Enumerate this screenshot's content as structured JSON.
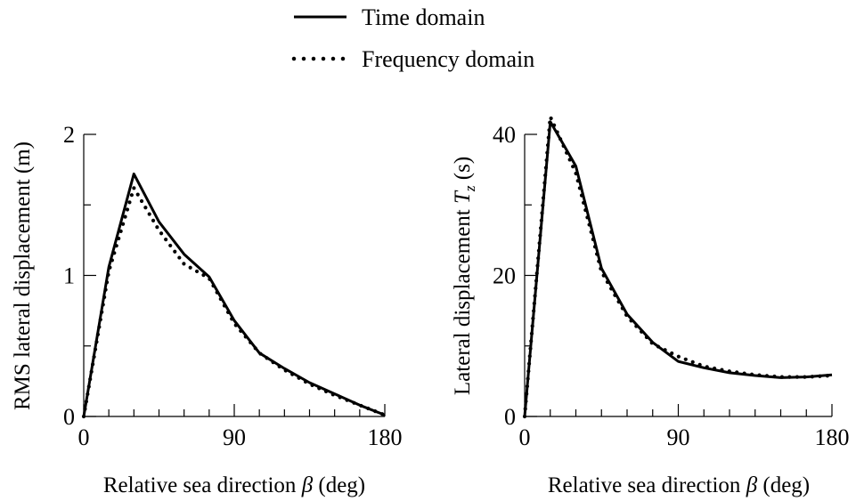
{
  "legend": {
    "entries": [
      {
        "label": "Time domain",
        "style": "solid"
      },
      {
        "label": "Frequency domain",
        "style": "dotted"
      }
    ],
    "placement": "top-center"
  },
  "chart_data": [
    {
      "type": "line",
      "xlabel": "Relative sea direction β (deg)",
      "xlabel_parts": [
        "Relative sea direction ",
        "β",
        " (deg)"
      ],
      "ylabel": "RMS lateral displacement (m)",
      "ylabel_parts": [
        "RMS lateral displacement (m)",
        "",
        ""
      ],
      "xlim": [
        0,
        180
      ],
      "ylim": [
        0,
        2
      ],
      "xticks": [
        0,
        90,
        180
      ],
      "xminor": [
        15,
        30,
        45,
        60,
        75,
        105,
        120,
        135,
        150,
        165
      ],
      "yticks": [
        0,
        1,
        2
      ],
      "yminor": [
        0.5,
        1.5
      ],
      "grid": false,
      "series": [
        {
          "name": "Time domain",
          "style": "solid",
          "x": [
            0,
            15,
            30,
            45,
            60,
            75,
            90,
            105,
            120,
            135,
            150,
            165,
            180
          ],
          "y": [
            0,
            1.06,
            1.72,
            1.38,
            1.15,
            0.99,
            0.68,
            0.45,
            0.34,
            0.24,
            0.16,
            0.08,
            0.01
          ]
        },
        {
          "name": "Frequency domain",
          "style": "dotted",
          "x": [
            0,
            15,
            30,
            45,
            60,
            75,
            90,
            105,
            120,
            135,
            150,
            165,
            180
          ],
          "y": [
            0,
            1.03,
            1.62,
            1.32,
            1.08,
            0.98,
            0.66,
            0.45,
            0.33,
            0.23,
            0.15,
            0.08,
            0.01
          ]
        }
      ]
    },
    {
      "type": "line",
      "xlabel": "Relative sea direction β (deg)",
      "xlabel_parts": [
        "Relative sea direction ",
        "β",
        " (deg)"
      ],
      "ylabel": "Lateral displacement Tz (s)",
      "ylabel_parts": [
        "Lateral displacement ",
        "T",
        "z",
        " (s)"
      ],
      "xlim": [
        0,
        180
      ],
      "ylim": [
        0,
        40
      ],
      "xticks": [
        0,
        90,
        180
      ],
      "xminor": [
        15,
        30,
        45,
        60,
        75,
        105,
        120,
        135,
        150,
        165
      ],
      "yticks": [
        0,
        20,
        40
      ],
      "yminor": [
        10,
        30
      ],
      "grid": false,
      "series": [
        {
          "name": "Time domain",
          "style": "solid",
          "x": [
            0,
            15,
            30,
            45,
            60,
            75,
            90,
            105,
            120,
            135,
            150,
            165,
            180
          ],
          "y": [
            0,
            41.8,
            35.5,
            21,
            14.5,
            10.5,
            7.8,
            6.9,
            6.2,
            5.8,
            5.5,
            5.6,
            5.9
          ]
        },
        {
          "name": "Frequency domain",
          "style": "dotted",
          "x": [
            0,
            15,
            30,
            45,
            60,
            75,
            90,
            105,
            120,
            135,
            150,
            165,
            180
          ],
          "y": [
            0,
            42.5,
            34.5,
            20.5,
            14.2,
            10.3,
            8.5,
            7.1,
            6.4,
            5.9,
            5.6,
            5.6,
            5.8
          ]
        }
      ]
    }
  ]
}
